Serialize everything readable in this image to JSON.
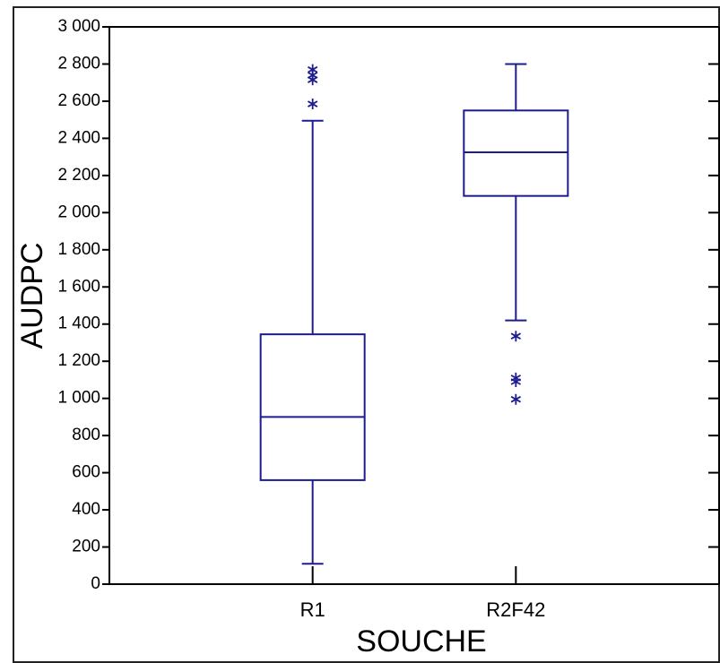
{
  "chart_data": {
    "type": "box",
    "x_label": "SOUCHE",
    "y_label": "AUDPC",
    "categories": [
      "R1",
      "R2F42"
    ],
    "color": "#1c1c8f",
    "boxes": [
      {
        "min": 110,
        "q1": 560,
        "median": 900,
        "q3": 1345,
        "max": 2495,
        "outliers": [
          2585,
          2715,
          2740,
          2770
        ]
      },
      {
        "min": 1420,
        "q1": 2090,
        "median": 2325,
        "q3": 2550,
        "max": 2800,
        "outliers": [
          1335,
          1110,
          1090,
          995
        ]
      }
    ],
    "ylim": [
      0,
      3000
    ],
    "yticks": [
      0,
      200,
      400,
      600,
      800,
      {
        "value": 1000,
        "label": "1 000"
      },
      {
        "value": 1200,
        "label": "1 200"
      },
      {
        "value": 1400,
        "label": "1 400"
      },
      {
        "value": 1600,
        "label": "1 600"
      },
      {
        "value": 1800,
        "label": "1 800"
      },
      {
        "value": 2000,
        "label": "2 000"
      },
      {
        "value": 2200,
        "label": "2 200"
      },
      {
        "value": 2400,
        "label": "2 400"
      },
      {
        "value": 2600,
        "label": "2 600"
      },
      {
        "value": 2800,
        "label": "2 800"
      },
      {
        "value": 3000,
        "label": "3 000"
      }
    ]
  }
}
